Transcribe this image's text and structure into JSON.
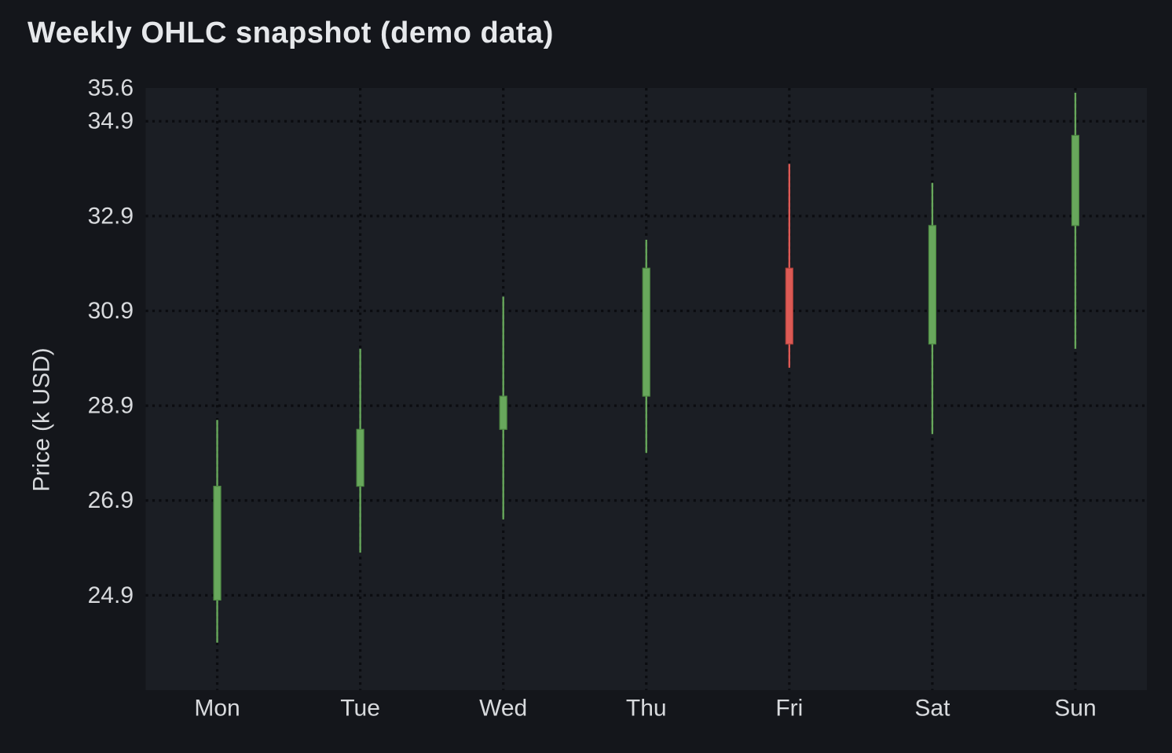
{
  "page": {
    "title": "Weekly OHLC snapshot (demo data)"
  },
  "colors": {
    "page_background": "#14161b",
    "plot_background": "#1b1e24",
    "grid": "#0b0c10",
    "tick_text": "#d8dadd",
    "axis_label_text": "#d8dadd",
    "title_text": "#e6e8eb",
    "up": "#68a85c",
    "up_edge": "#4e8a43",
    "down": "#dd5a55",
    "down_edge": "#b4443e"
  },
  "chart_data": {
    "type": "candlestick",
    "title": "Weekly OHLC snapshot (demo data)",
    "xlabel": "",
    "ylabel": "Price (k USD)",
    "categories": [
      "Mon",
      "Tue",
      "Wed",
      "Thu",
      "Fri",
      "Sat",
      "Sun"
    ],
    "series": [
      {
        "name": "OHLC",
        "points": [
          {
            "day": "Mon",
            "open": 24.8,
            "high": 28.6,
            "low": 23.9,
            "close": 27.2,
            "direction": "up"
          },
          {
            "day": "Tue",
            "open": 27.2,
            "high": 30.1,
            "low": 25.8,
            "close": 28.4,
            "direction": "up"
          },
          {
            "day": "Wed",
            "open": 28.4,
            "high": 31.2,
            "low": 26.5,
            "close": 29.1,
            "direction": "up"
          },
          {
            "day": "Thu",
            "open": 29.1,
            "high": 32.4,
            "low": 27.9,
            "close": 31.8,
            "direction": "up"
          },
          {
            "day": "Fri",
            "open": 31.8,
            "high": 34.0,
            "low": 29.7,
            "close": 30.2,
            "direction": "down"
          },
          {
            "day": "Sat",
            "open": 30.2,
            "high": 33.6,
            "low": 28.3,
            "close": 32.7,
            "direction": "up"
          },
          {
            "day": "Sun",
            "open": 32.7,
            "high": 35.5,
            "low": 30.1,
            "close": 34.6,
            "direction": "up"
          }
        ]
      }
    ],
    "yticks": [
      {
        "label": "35.6",
        "value": 35.6,
        "gridline": false
      },
      {
        "label": "34.9",
        "value": 34.9,
        "gridline": true
      },
      {
        "label": "32.9",
        "value": 32.9,
        "gridline": true
      },
      {
        "label": "30.9",
        "value": 30.9,
        "gridline": true
      },
      {
        "label": "28.9",
        "value": 28.9,
        "gridline": true
      },
      {
        "label": "26.9",
        "value": 26.9,
        "gridline": true
      },
      {
        "label": "24.9",
        "value": 24.9,
        "gridline": true
      }
    ],
    "ylim": [
      22.9,
      35.6
    ],
    "grid": "dotted",
    "legend": "none",
    "up_color": "#68a85c",
    "down_color": "#dd5a55"
  }
}
